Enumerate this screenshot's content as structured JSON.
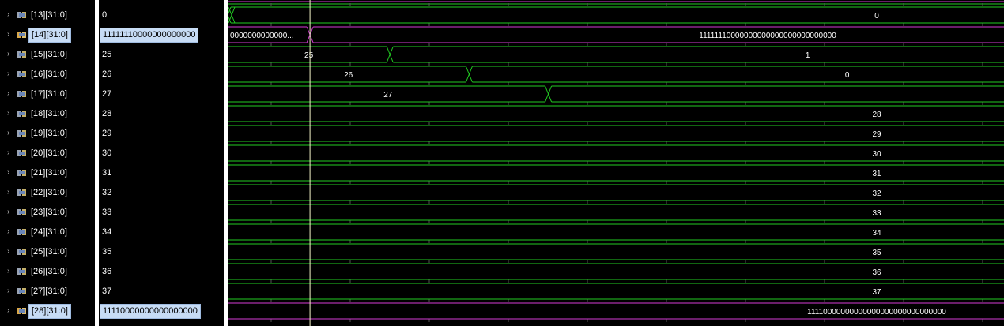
{
  "colors": {
    "bus_green": "#22cc22",
    "bus_magenta": "#d63bd6",
    "cursor": "#f5f5c8",
    "selection": "#c7dcf5"
  },
  "signals": [
    {
      "name": "[13][31:0]",
      "value": "0",
      "selected": false
    },
    {
      "name": "[14][31:0]",
      "value": "11111110000000000000",
      "selected": true
    },
    {
      "name": "[15][31:0]",
      "value": "25",
      "selected": false
    },
    {
      "name": "[16][31:0]",
      "value": "26",
      "selected": false
    },
    {
      "name": "[17][31:0]",
      "value": "27",
      "selected": false
    },
    {
      "name": "[18][31:0]",
      "value": "28",
      "selected": false
    },
    {
      "name": "[19][31:0]",
      "value": "29",
      "selected": false
    },
    {
      "name": "[20][31:0]",
      "value": "30",
      "selected": false
    },
    {
      "name": "[21][31:0]",
      "value": "31",
      "selected": false
    },
    {
      "name": "[22][31:0]",
      "value": "32",
      "selected": false
    },
    {
      "name": "[23][31:0]",
      "value": "33",
      "selected": false
    },
    {
      "name": "[24][31:0]",
      "value": "34",
      "selected": false
    },
    {
      "name": "[25][31:0]",
      "value": "35",
      "selected": false
    },
    {
      "name": "[26][31:0]",
      "value": "36",
      "selected": false
    },
    {
      "name": "[27][31:0]",
      "value": "37",
      "selected": false
    },
    {
      "name": "[28][31:0]",
      "value": "11110000000000000000",
      "selected": true
    }
  ],
  "waves": [
    {
      "color": "magenta_top",
      "segments": []
    },
    {
      "color": "green",
      "segments": [
        {
          "t0": 0,
          "t1": 0,
          "label": ""
        },
        {
          "t0": 0,
          "t1": 1,
          "label": "0"
        }
      ]
    },
    {
      "color": "magenta",
      "segments": [
        {
          "t0": 0,
          "t1": 0.106,
          "label": "0000000000000..."
        },
        {
          "t0": 0.106,
          "t1": 1,
          "label": "11111110000000000000000000000000"
        }
      ]
    },
    {
      "color": "green",
      "segments": [
        {
          "t0": 0,
          "t1": 0.209,
          "label": "25"
        },
        {
          "t0": 0.209,
          "t1": 1,
          "label": "1"
        }
      ]
    },
    {
      "color": "green",
      "segments": [
        {
          "t0": 0,
          "t1": 0.311,
          "label": "26"
        },
        {
          "t0": 0.311,
          "t1": 1,
          "label": "0"
        }
      ]
    },
    {
      "color": "green",
      "segments": [
        {
          "t0": 0,
          "t1": 0.413,
          "label": "27"
        },
        {
          "t0": 0.413,
          "t1": 1,
          "label": ""
        }
      ]
    },
    {
      "color": "green",
      "segments": [
        {
          "t0": 0,
          "t1": 1,
          "label": "28"
        }
      ]
    },
    {
      "color": "green",
      "segments": [
        {
          "t0": 0,
          "t1": 1,
          "label": "29"
        }
      ]
    },
    {
      "color": "green",
      "segments": [
        {
          "t0": 0,
          "t1": 1,
          "label": "30"
        }
      ]
    },
    {
      "color": "green",
      "segments": [
        {
          "t0": 0,
          "t1": 1,
          "label": "31"
        }
      ]
    },
    {
      "color": "green",
      "segments": [
        {
          "t0": 0,
          "t1": 1,
          "label": "32"
        }
      ]
    },
    {
      "color": "green",
      "segments": [
        {
          "t0": 0,
          "t1": 1,
          "label": "33"
        }
      ]
    },
    {
      "color": "green",
      "segments": [
        {
          "t0": 0,
          "t1": 1,
          "label": "34"
        }
      ]
    },
    {
      "color": "green",
      "segments": [
        {
          "t0": 0,
          "t1": 1,
          "label": "35"
        }
      ]
    },
    {
      "color": "green",
      "segments": [
        {
          "t0": 0,
          "t1": 1,
          "label": "36"
        }
      ]
    },
    {
      "color": "green",
      "segments": [
        {
          "t0": 0,
          "t1": 1,
          "label": "37"
        }
      ]
    },
    {
      "color": "magenta",
      "segments": [
        {
          "t0": 0,
          "t1": 1,
          "label": "11110000000000000000000000000000"
        }
      ]
    }
  ],
  "cursor_time": 0.106,
  "icons": {
    "chevron": "chevron-right-icon",
    "signal": "bus-signal-icon"
  }
}
